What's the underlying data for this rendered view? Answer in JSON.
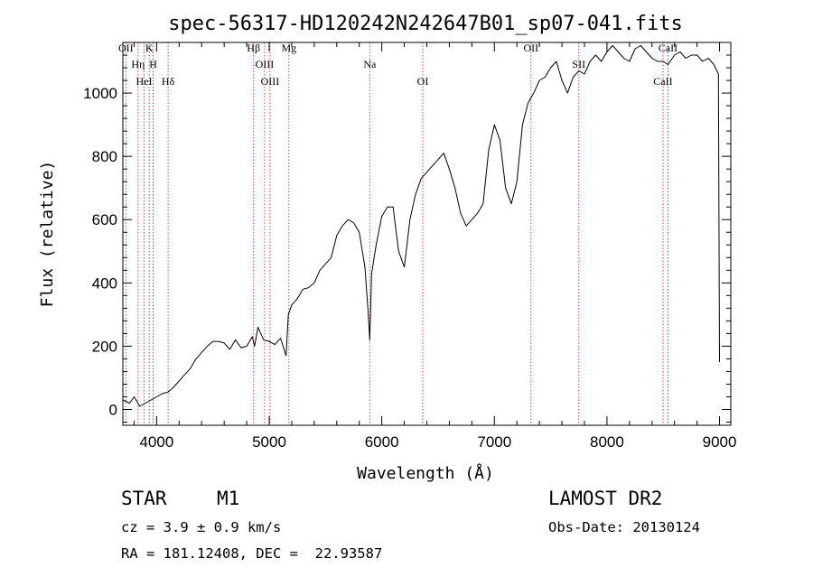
{
  "chart_data": {
    "type": "line",
    "title": "spec-56317-HD120242N242647B01_sp07-041.fits",
    "xlabel": "Wavelength (Å)",
    "ylabel": "Flux (relative)",
    "xlim": [
      3700,
      9100
    ],
    "ylim": [
      -50,
      1160
    ],
    "x_ticks": [
      4000,
      5000,
      6000,
      7000,
      8000,
      9000
    ],
    "y_ticks": [
      0,
      200,
      400,
      600,
      800,
      1000
    ],
    "grid": false,
    "line_color": "#000000",
    "marker_color": "#cc3333",
    "spectral_lines": [
      {
        "label": "OII",
        "wavelength": 3727
      },
      {
        "label": "Hη",
        "wavelength": 3835
      },
      {
        "label": "HeI",
        "wavelength": 3889
      },
      {
        "label": "K",
        "wavelength": 3934
      },
      {
        "label": "H",
        "wavelength": 3969
      },
      {
        "label": "Hδ",
        "wavelength": 4102
      },
      {
        "label": "Hβ",
        "wavelength": 4861
      },
      {
        "label": "OIII",
        "wavelength": 4959
      },
      {
        "label": "OIII",
        "wavelength": 5007
      },
      {
        "label": "Mg",
        "wavelength": 5175
      },
      {
        "label": "Na",
        "wavelength": 5893
      },
      {
        "label": "OI",
        "wavelength": 6364
      },
      {
        "label": "OII",
        "wavelength": 7325
      },
      {
        "label": "SII",
        "wavelength": 7750
      },
      {
        "label": "CaII",
        "wavelength": 8498
      },
      {
        "label": "CaII",
        "wavelength": 8542
      }
    ],
    "spectrum": {
      "wavelength": [
        3700,
        3760,
        3800,
        3850,
        3900,
        3950,
        4000,
        4050,
        4100,
        4150,
        4200,
        4250,
        4300,
        4350,
        4400,
        4450,
        4500,
        4550,
        4600,
        4650,
        4700,
        4750,
        4800,
        4850,
        4870,
        4900,
        4950,
        5000,
        5050,
        5100,
        5150,
        5170,
        5200,
        5250,
        5300,
        5350,
        5400,
        5450,
        5500,
        5550,
        5600,
        5650,
        5700,
        5750,
        5800,
        5850,
        5880,
        5893,
        5910,
        5950,
        6000,
        6050,
        6100,
        6150,
        6200,
        6250,
        6300,
        6350,
        6400,
        6450,
        6500,
        6550,
        6600,
        6650,
        6700,
        6750,
        6800,
        6850,
        6900,
        6950,
        7000,
        7050,
        7100,
        7150,
        7200,
        7250,
        7300,
        7350,
        7400,
        7450,
        7500,
        7550,
        7600,
        7650,
        7700,
        7750,
        7800,
        7850,
        7900,
        7950,
        8000,
        8050,
        8100,
        8150,
        8200,
        8250,
        8300,
        8350,
        8400,
        8450,
        8500,
        8542,
        8600,
        8650,
        8700,
        8750,
        8800,
        8850,
        8900,
        8950,
        8990,
        9000
      ],
      "flux": [
        30,
        20,
        40,
        10,
        20,
        30,
        40,
        50,
        55,
        70,
        90,
        110,
        130,
        160,
        180,
        200,
        215,
        215,
        210,
        190,
        220,
        195,
        200,
        230,
        200,
        260,
        220,
        215,
        205,
        225,
        170,
        300,
        330,
        350,
        380,
        385,
        400,
        440,
        460,
        480,
        550,
        580,
        600,
        590,
        560,
        450,
        300,
        220,
        430,
        520,
        610,
        640,
        640,
        500,
        450,
        600,
        680,
        730,
        750,
        770,
        790,
        810,
        760,
        700,
        620,
        580,
        600,
        620,
        650,
        820,
        900,
        850,
        700,
        650,
        720,
        900,
        970,
        1000,
        1040,
        1050,
        1080,
        1100,
        1040,
        1000,
        1050,
        1070,
        1060,
        1100,
        1120,
        1100,
        1130,
        1150,
        1130,
        1110,
        1100,
        1140,
        1150,
        1130,
        1110,
        1100,
        1100,
        1090,
        1120,
        1130,
        1110,
        1120,
        1120,
        1100,
        1110,
        1090,
        1060,
        150
      ]
    }
  },
  "info": {
    "object_type": "STAR",
    "subclass": "M1",
    "survey": "LAMOST DR2",
    "redshift": "cz = 3.9 ± 0.9 km/s",
    "obs_date": "Obs-Date: 20130124",
    "coords": "RA = 181.12408, DEC =  22.93587"
  }
}
